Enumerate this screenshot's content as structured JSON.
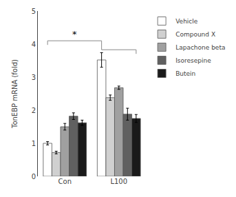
{
  "chart_data": {
    "type": "bar",
    "categories": [
      "Con",
      "L100"
    ],
    "series": [
      {
        "name": "Vehicle",
        "color": "#ffffff",
        "values": [
          1.0,
          3.52
        ],
        "errors": [
          0.05,
          0.22
        ]
      },
      {
        "name": "Compound X",
        "color": "#d0d0d0",
        "values": [
          0.72,
          2.38
        ],
        "errors": [
          0.04,
          0.08
        ]
      },
      {
        "name": "Lapachone beta",
        "color": "#a0a0a0",
        "values": [
          1.5,
          2.68
        ],
        "errors": [
          0.1,
          0.05
        ]
      },
      {
        "name": "Isoresepine",
        "color": "#606060",
        "values": [
          1.82,
          1.88
        ],
        "errors": [
          0.1,
          0.18
        ]
      },
      {
        "name": "Butein",
        "color": "#1a1a1a",
        "values": [
          1.62,
          1.75
        ],
        "errors": [
          0.08,
          0.12
        ]
      }
    ],
    "ylabel": "TonEBP mRNA (fold)",
    "ylim": [
      0,
      5
    ],
    "yticks": [
      0,
      1,
      2,
      3,
      4,
      5
    ],
    "annotations": [
      {
        "text": "*",
        "y": 4.1
      }
    ],
    "legend": "right",
    "grid": false
  }
}
